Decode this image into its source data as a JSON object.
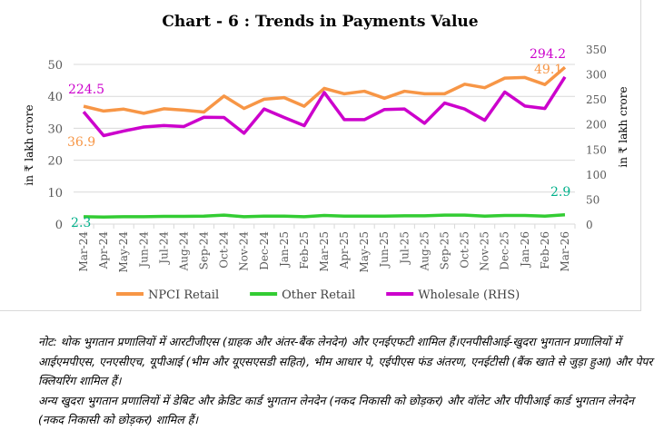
{
  "chart_data": {
    "type": "line",
    "title": "Chart - 6 : Trends in Payments Value",
    "ylabel": "in ₹ lakh crore",
    "y2label": "in ₹ lakh crore",
    "ylim": [
      0,
      50
    ],
    "y2lim": [
      0,
      350
    ],
    "yticks": [
      "0",
      "10",
      "20",
      "30",
      "40",
      "50"
    ],
    "y2ticks": [
      "0",
      "50",
      "100",
      "150",
      "200",
      "250",
      "300",
      "350"
    ],
    "grid": true,
    "legend": "bottom",
    "categories": [
      "Mar-24",
      "Apr-24",
      "May-24",
      "Jun-24",
      "Jul-24",
      "Aug-24",
      "Sep-24",
      "Oct-24",
      "Nov-24",
      "Dec-24",
      "Jan-25",
      "Feb-25",
      "Mar-25",
      "Apr-25",
      "May-25",
      "Jun-25",
      "Jul-25",
      "Aug-25",
      "Sep-25",
      "Oct-25",
      "Nov-25",
      "Dec-25",
      "Jan-26",
      "Feb-26",
      "Mar-26"
    ],
    "series": [
      {
        "name": "NPCI Retail",
        "axis": "left",
        "color": "#f79646",
        "labels": [
          "36.9",
          "49.1"
        ],
        "values": [
          36.9,
          35.4,
          36.0,
          34.7,
          36.1,
          35.7,
          35.1,
          40.1,
          36.2,
          39.1,
          39.6,
          36.9,
          42.5,
          40.8,
          41.6,
          39.4,
          41.6,
          40.8,
          40.8,
          43.8,
          42.7,
          45.7,
          45.9,
          43.7,
          49.1
        ]
      },
      {
        "name": "Other Retail",
        "axis": "left",
        "color": "#33cc33",
        "labelColor": "#00b08a",
        "labels": [
          "2.3",
          "2.9"
        ],
        "values": [
          2.3,
          2.2,
          2.3,
          2.3,
          2.4,
          2.4,
          2.5,
          2.8,
          2.3,
          2.5,
          2.5,
          2.3,
          2.7,
          2.5,
          2.5,
          2.5,
          2.6,
          2.6,
          2.8,
          2.8,
          2.5,
          2.7,
          2.7,
          2.5,
          2.9
        ]
      },
      {
        "name": "Wholesale (RHS)",
        "axis": "right",
        "color": "#cc00cc",
        "labels": [
          "224.5",
          "294.2"
        ],
        "values": [
          224.5,
          176.8,
          186,
          194,
          197,
          195,
          213.5,
          213,
          181.5,
          230,
          213,
          196.7,
          263,
          208.7,
          208.7,
          229,
          230,
          201.5,
          242,
          230,
          207.5,
          264,
          236,
          231,
          294.2
        ]
      }
    ]
  },
  "notes": [
    "नोट: थोक भुगतान प्रणालियों में आरटीजीएस (ग्राहक और अंतर-बैंक लेनदेन) और एनईएफटी शामिल हैं।एनपीसीआई-खुदरा भुगतान प्रणालियों में आईएमपीएस, एनएसीएच, यूपीआई (भीम और यूएसएसडी सहित), भीम आधार पे, एईपीएस फंड अंतरण, एनईटीसी (बैंक खाते से जुड़ा हुआ) और पेपर क्लियरिंग शामिल हैं।",
    "अन्य खुदरा भुगतान प्रणालियों में डेबिट और क्रेडिट कार्ड भुगतान लेनदेन (नकद निकासी को छोड़कर) और वॉलेट और पीपीआई कार्ड भुगतान लेनदेन (नकद निकासी को छोड़कर) शामिल हैं।"
  ]
}
